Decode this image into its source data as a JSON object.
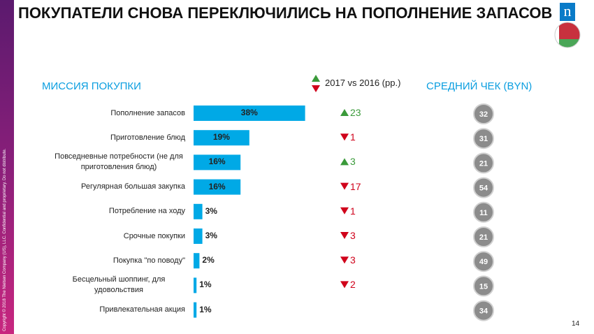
{
  "header": {
    "title": "ПОКУПАТЕЛИ СНОВА ПЕРЕКЛЮЧИЛИСЬ НА ПОПОЛНЕНИЕ ЗАПАСОВ",
    "logo": "n"
  },
  "chart_data": {
    "type": "bar",
    "title": "МИССИЯ ПОКУПКИ",
    "categories": [
      "Пополнение запасов",
      "Приготовление блюд",
      "Повседневные потребности (не для приготовления блюд)",
      "Регулярная большая закупка",
      "Потребление на ходу",
      "Срочные покупки",
      "Покупка \"по поводу\"",
      "Бесцельный шоппинг, для удовольствия",
      "Привлекательная акция"
    ],
    "values": [
      38,
      19,
      16,
      16,
      3,
      3,
      2,
      1,
      1
    ],
    "value_labels": [
      "38%",
      "19%",
      "16%",
      "16%",
      "3%",
      "3%",
      "2%",
      "1%",
      "1%"
    ],
    "color": "#00a9e6",
    "change": {
      "title": "2017 vs 2016 (pp.)",
      "values": [
        23,
        -1,
        3,
        -17,
        -1,
        -3,
        -3,
        -2,
        null
      ],
      "value_labels": [
        "23",
        "1",
        "3",
        "17",
        "1",
        "3",
        "3",
        "2",
        null
      ],
      "up_color": "#3a9a3a",
      "down_color": "#d0021b"
    },
    "average_check": {
      "title": "СРЕДНИЙ ЧЕК (BYN)",
      "values": [
        32,
        31,
        21,
        54,
        11,
        21,
        49,
        15,
        34
      ],
      "color": "#8c8c8c"
    }
  },
  "footer": {
    "page_number": "14",
    "copyright": "Copyright © 2018 The Nielsen Company (US), LLC. Confidential and proprietary. Do not distribute."
  }
}
